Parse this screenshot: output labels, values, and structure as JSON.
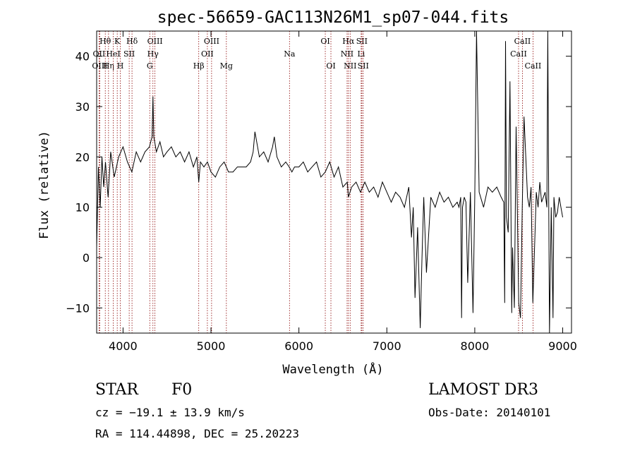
{
  "chart_data": {
    "type": "line",
    "title": "spec-56659-GAC113N26M1_sp07-044.fits",
    "xlabel": "Wavelength (Å)",
    "ylabel": "Flux (relative)",
    "xlim": [
      3700,
      9100
    ],
    "ylim": [
      -15,
      45
    ],
    "xticks": [
      4000,
      5000,
      6000,
      7000,
      8000,
      9000
    ],
    "yticks": [
      -10,
      0,
      10,
      20,
      30,
      40
    ],
    "grid": false,
    "series": [
      {
        "name": "flux",
        "x": [
          3700,
          3720,
          3740,
          3760,
          3780,
          3800,
          3830,
          3860,
          3900,
          3950,
          4000,
          4050,
          4100,
          4150,
          4200,
          4250,
          4300,
          4330,
          4340,
          4350,
          4380,
          4420,
          4460,
          4500,
          4550,
          4600,
          4650,
          4700,
          4750,
          4800,
          4840,
          4861,
          4880,
          4920,
          4960,
          5000,
          5050,
          5100,
          5150,
          5200,
          5250,
          5300,
          5350,
          5400,
          5450,
          5480,
          5500,
          5550,
          5600,
          5650,
          5700,
          5720,
          5750,
          5800,
          5850,
          5890,
          5920,
          5950,
          6000,
          6050,
          6100,
          6150,
          6200,
          6250,
          6300,
          6350,
          6400,
          6450,
          6500,
          6550,
          6563,
          6600,
          6650,
          6700,
          6750,
          6800,
          6850,
          6900,
          6950,
          7000,
          7050,
          7100,
          7150,
          7200,
          7250,
          7280,
          7300,
          7320,
          7350,
          7380,
          7400,
          7420,
          7450,
          7500,
          7550,
          7600,
          7650,
          7700,
          7750,
          7800,
          7820,
          7840,
          7850,
          7860,
          7880,
          7900,
          7920,
          7950,
          7980,
          8000,
          8020,
          8050,
          8100,
          8150,
          8200,
          8250,
          8300,
          8330,
          8340,
          8350,
          8360,
          8380,
          8400,
          8420,
          8430,
          8450,
          8470,
          8500,
          8520,
          8540,
          8560,
          8600,
          8620,
          8640,
          8660,
          8700,
          8720,
          8740,
          8760,
          8800,
          8820,
          8830,
          8840,
          8850,
          8870,
          8890,
          8900,
          8920,
          8940,
          8960,
          8980,
          9000
        ],
        "values": [
          2,
          18,
          10,
          20,
          14,
          19,
          12,
          21,
          16,
          20,
          22,
          19,
          17,
          21,
          19,
          21,
          22,
          24,
          32,
          24,
          21,
          23,
          20,
          21,
          22,
          20,
          21,
          19,
          21,
          18,
          20,
          15,
          19,
          18,
          19,
          17,
          16,
          18,
          19,
          17,
          17,
          18,
          18,
          18,
          19,
          21,
          25,
          20,
          21,
          19,
          22,
          24,
          20,
          18,
          19,
          18,
          17,
          18,
          18,
          19,
          17,
          18,
          19,
          16,
          17,
          19,
          16,
          18,
          14,
          15,
          12,
          14,
          15,
          13,
          15,
          13,
          14,
          12,
          15,
          13,
          11,
          13,
          12,
          10,
          14,
          4,
          10,
          -8,
          6,
          -14,
          0,
          12,
          -3,
          12,
          10,
          13,
          11,
          12,
          10,
          11,
          10,
          12,
          -12,
          10,
          12,
          11,
          -5,
          13,
          -11,
          12,
          45,
          13,
          10,
          14,
          13,
          14,
          12,
          11,
          -9,
          43,
          8,
          5,
          35,
          -11,
          2,
          -10,
          26,
          -9,
          -12,
          10,
          28,
          12,
          10,
          14,
          -9,
          13,
          10,
          15,
          11,
          13,
          10,
          45,
          14,
          -15,
          10,
          -12,
          12,
          8,
          9,
          12,
          10,
          8
        ]
      }
    ],
    "line_markers": [
      {
        "name": "Hθ",
        "x": 3798,
        "row": 0
      },
      {
        "name": "OII",
        "x": 3727,
        "row": 1
      },
      {
        "name": "OIII",
        "x": 3735,
        "row": 2
      },
      {
        "name": "Hη",
        "x": 3835,
        "row": 2
      },
      {
        "name": "HeI",
        "x": 3889,
        "row": 1
      },
      {
        "name": "K",
        "x": 3934,
        "row": 0
      },
      {
        "name": "H",
        "x": 3969,
        "row": 2
      },
      {
        "name": "SII",
        "x": 4070,
        "row": 1
      },
      {
        "name": "Hδ",
        "x": 4102,
        "row": 0
      },
      {
        "name": "OIII",
        "x": 4363,
        "row": 0
      },
      {
        "name": "Hγ",
        "x": 4340,
        "row": 1
      },
      {
        "name": "G",
        "x": 4304,
        "row": 2
      },
      {
        "name": "OIII",
        "x": 5007,
        "row": 0
      },
      {
        "name": "OII",
        "x": 4959,
        "row": 1
      },
      {
        "name": "Hβ",
        "x": 4861,
        "row": 2
      },
      {
        "name": "Mg",
        "x": 5175,
        "row": 2
      },
      {
        "name": "Na",
        "x": 5893,
        "row": 1
      },
      {
        "name": "OI",
        "x": 6300,
        "row": 0
      },
      {
        "name": "OI",
        "x": 6364,
        "row": 2
      },
      {
        "name": "Hα",
        "x": 6563,
        "row": 0
      },
      {
        "name": "NII",
        "x": 6548,
        "row": 1
      },
      {
        "name": "NII",
        "x": 6583,
        "row": 2
      },
      {
        "name": "SII",
        "x": 6716,
        "row": 0
      },
      {
        "name": "Li",
        "x": 6708,
        "row": 1
      },
      {
        "name": "SII",
        "x": 6731,
        "row": 2
      },
      {
        "name": "CaII",
        "x": 8542,
        "row": 0
      },
      {
        "name": "CaII",
        "x": 8498,
        "row": 1
      },
      {
        "name": "CaII",
        "x": 8662,
        "row": 2
      }
    ]
  },
  "info": {
    "class": "STAR",
    "subclass": "F0",
    "survey": "LAMOST DR3",
    "cz": "cz = −19.1 ± 13.9 km/s",
    "obs_date": "Obs-Date: 20140101",
    "radec": "RA = 114.44898, DEC =  25.20223"
  },
  "colors": {
    "line": "#000000",
    "marker": "#8b0000",
    "axis": "#000000"
  }
}
